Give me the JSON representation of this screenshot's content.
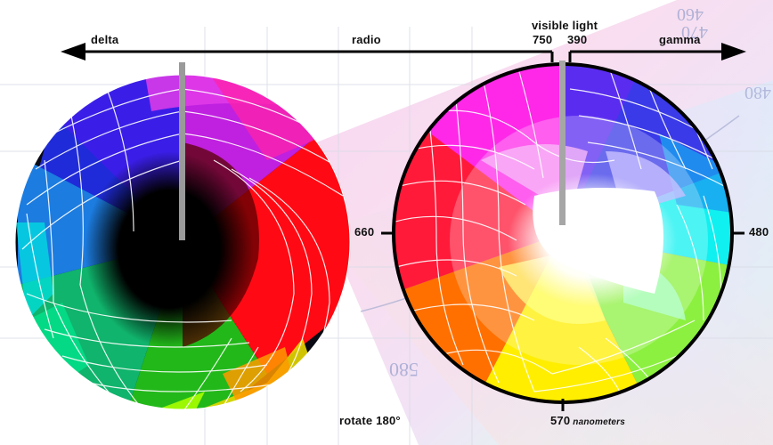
{
  "spectrum_arrow": {
    "left_label": "delta",
    "middle_label": "radio",
    "visible_label": "visible light",
    "tick_left": "750",
    "tick_right": "390",
    "right_label": "gamma"
  },
  "right_wheel": {
    "label_left": "660",
    "label_right": "480",
    "label_bottom": "570",
    "unit": "nanometers"
  },
  "left_wheel": {
    "caption": "rotate 180°"
  },
  "background_chart": {
    "tick_labels": [
      "470",
      "460",
      "480",
      "580"
    ]
  },
  "colors": {
    "arrow": "#000000",
    "grid_lines": "#ffffff",
    "wheel_outline": "#000000"
  }
}
